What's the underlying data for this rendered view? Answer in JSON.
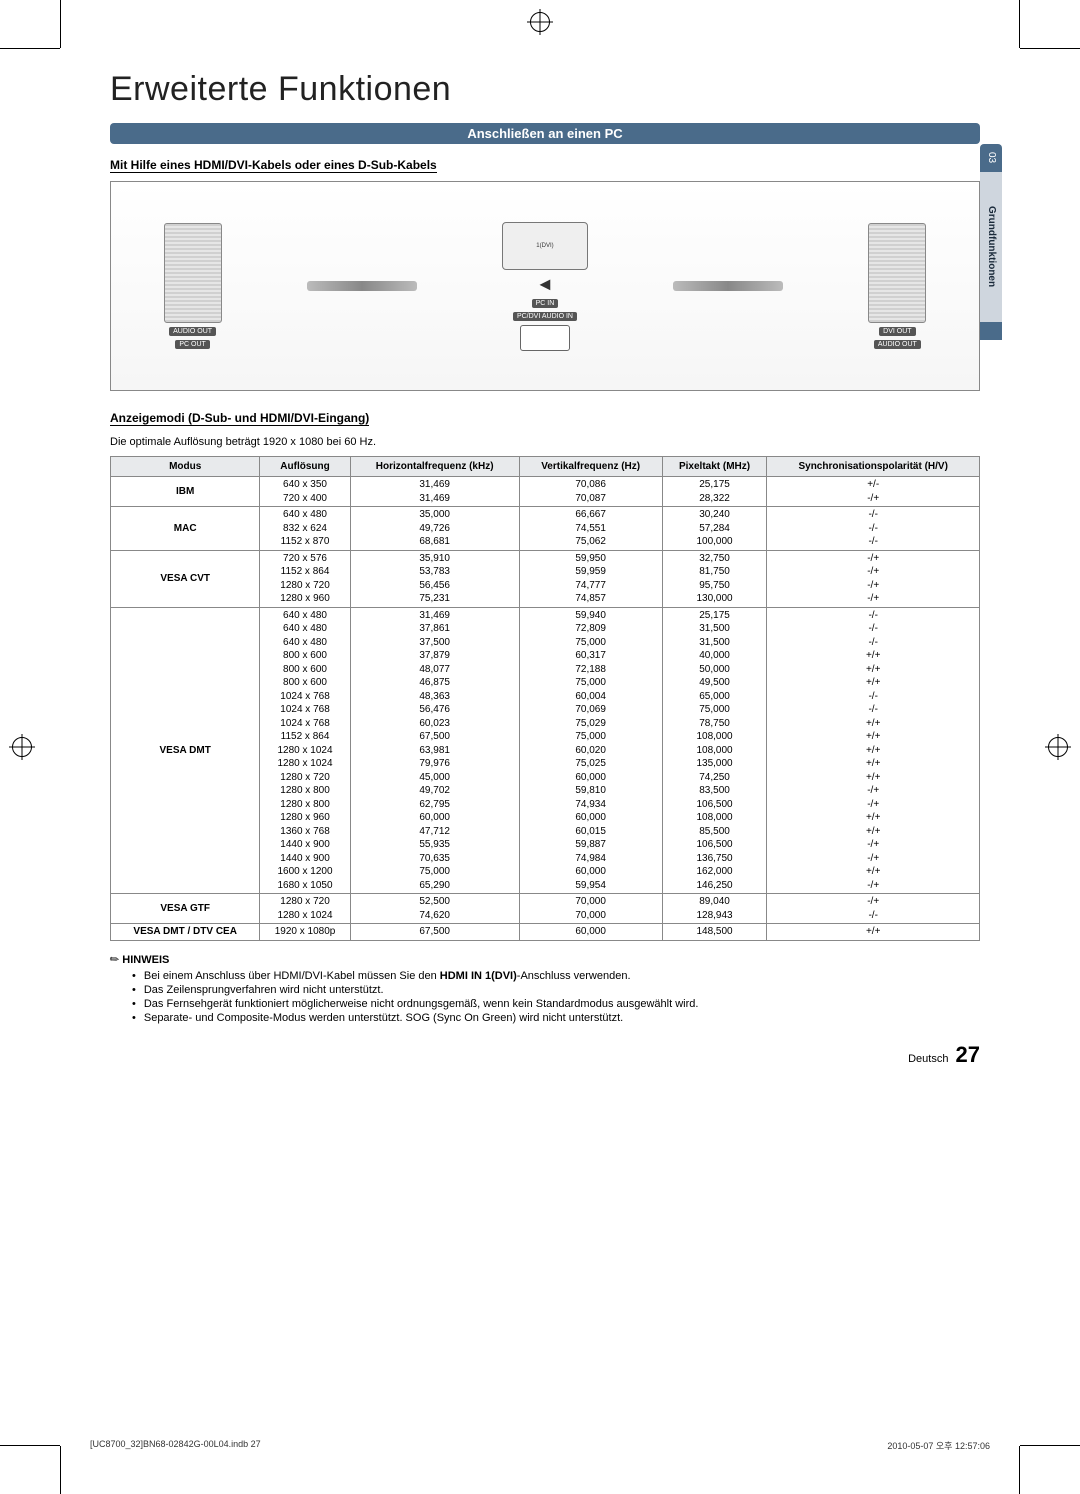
{
  "sidetab": {
    "num": "03",
    "label": "Grundfunktionen"
  },
  "title": "Erweiterte Funktionen",
  "banner": "Anschließen an einen PC",
  "sub1": "Mit Hilfe eines HDMI/DVI-Kabels oder eines D-Sub-Kabels",
  "diagram": {
    "audio_out_l": "AUDIO OUT",
    "pc_out": "PC OUT",
    "hdmi_port": "1(DVI)",
    "pc_in": "PC IN",
    "pcdvi_audio": "PC/DVI AUDIO IN",
    "dvi_out": "DVI OUT",
    "audio_out_r": "AUDIO OUT"
  },
  "sub2": "Anzeigemodi (D-Sub- und HDMI/DVI-Eingang)",
  "optline": "Die optimale Auflösung beträgt 1920 x 1080 bei 60 Hz.",
  "theaders": {
    "mode": "Modus",
    "res": "Auflösung",
    "hfreq": "Horizontalfrequenz (kHz)",
    "vfreq": "Vertikalfrequenz (Hz)",
    "pclk": "Pixeltakt (MHz)",
    "sync": "Synchronisationspolarität (H/V)"
  },
  "rows": [
    {
      "mode": "IBM",
      "res": "640 x 350\n720 x 400",
      "h": "31,469\n31,469",
      "v": "70,086\n70,087",
      "p": "25,175\n28,322",
      "s": "+/-\n-/+"
    },
    {
      "mode": "MAC",
      "res": "640 x 480\n832 x 624\n1152 x 870",
      "h": "35,000\n49,726\n68,681",
      "v": "66,667\n74,551\n75,062",
      "p": "30,240\n57,284\n100,000",
      "s": "-/-\n-/-\n-/-"
    },
    {
      "mode": "VESA CVT",
      "res": "720 x 576\n1152 x 864\n1280 x 720\n1280 x 960",
      "h": "35,910\n53,783\n56,456\n75,231",
      "v": "59,950\n59,959\n74,777\n74,857",
      "p": "32,750\n81,750\n95,750\n130,000",
      "s": "-/+\n-/+\n-/+\n-/+"
    },
    {
      "mode": "VESA DMT",
      "res": "640 x 480\n640 x 480\n640 x 480\n800 x 600\n800 x 600\n800 x 600\n1024 x 768\n1024 x 768\n1024 x 768\n1152 x 864\n1280 x 1024\n1280 x 1024\n1280 x 720\n1280 x 800\n1280 x 800\n1280 x 960\n1360 x 768\n1440 x 900\n1440 x 900\n1600 x 1200\n1680 x 1050",
      "h": "31,469\n37,861\n37,500\n37,879\n48,077\n46,875\n48,363\n56,476\n60,023\n67,500\n63,981\n79,976\n45,000\n49,702\n62,795\n60,000\n47,712\n55,935\n70,635\n75,000\n65,290",
      "v": "59,940\n72,809\n75,000\n60,317\n72,188\n75,000\n60,004\n70,069\n75,029\n75,000\n60,020\n75,025\n60,000\n59,810\n74,934\n60,000\n60,015\n59,887\n74,984\n60,000\n59,954",
      "p": "25,175\n31,500\n31,500\n40,000\n50,000\n49,500\n65,000\n75,000\n78,750\n108,000\n108,000\n135,000\n74,250\n83,500\n106,500\n108,000\n85,500\n106,500\n136,750\n162,000\n146,250",
      "s": "-/-\n-/-\n-/-\n+/+\n+/+\n+/+\n-/-\n-/-\n+/+\n+/+\n+/+\n+/+\n+/+\n-/+\n-/+\n+/+\n+/+\n-/+\n-/+\n+/+\n-/+"
    },
    {
      "mode": "VESA GTF",
      "res": "1280 x 720\n1280 x 1024",
      "h": "52,500\n74,620",
      "v": "70,000\n70,000",
      "p": "89,040\n128,943",
      "s": "-/+\n-/-"
    },
    {
      "mode": "VESA DMT / DTV CEA",
      "res": "1920 x 1080p",
      "h": "67,500",
      "v": "60,000",
      "p": "148,500",
      "s": "+/+"
    }
  ],
  "notes": {
    "title": "HINWEIS",
    "items": [
      "Bei einem Anschluss über HDMI/DVI-Kabel müssen Sie den HDMI IN 1(DVI)-Anschluss verwenden.",
      "Das Zeilensprungverfahren wird nicht unterstützt.",
      "Das Fernsehgerät funktioniert möglicherweise nicht ordnungsgemäß, wenn kein Standardmodus ausgewählt wird.",
      "Separate- und Composite-Modus werden unterstützt. SOG (Sync On Green) wird nicht unterstützt."
    ]
  },
  "page_lang": "Deutsch",
  "page_num": "27",
  "footer_left": "[UC8700_32]BN68-02842G-00L04.indb   27",
  "footer_right": "2010-05-07   오후 12:57:06"
}
